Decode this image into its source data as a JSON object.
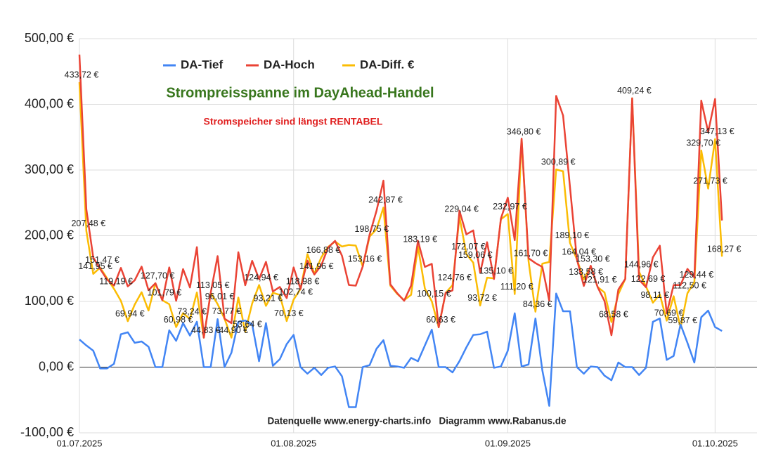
{
  "chart_data": {
    "type": "line",
    "title": "Strompreisspanne im DayAhead-Handel",
    "subtitle": "Stromspeicher sind längst RENTABEL",
    "annotations": [
      "Datenquelle www.energy-charts.info   Diagramm www.Rabanus.de"
    ],
    "legend": "top",
    "grid": true,
    "ylim": [
      -100,
      500
    ],
    "yticks": [
      {
        "value": -100,
        "label": "-100,00 €"
      },
      {
        "value": 0,
        "label": "0,00 €"
      },
      {
        "value": 100,
        "label": "100,00 €"
      },
      {
        "value": 200,
        "label": "200,00 €"
      },
      {
        "value": 300,
        "label": "300,00 €"
      },
      {
        "value": 400,
        "label": "400,00 €"
      },
      {
        "value": 500,
        "label": "500,00 €"
      }
    ],
    "categories": [
      "01.07.2025",
      null,
      null,
      null,
      null,
      null,
      null,
      null,
      null,
      null,
      null,
      null,
      null,
      null,
      null,
      null,
      null,
      null,
      null,
      null,
      null,
      null,
      null,
      null,
      null,
      null,
      null,
      null,
      null,
      null,
      null,
      "01.08.2025",
      null,
      null,
      null,
      null,
      null,
      null,
      null,
      null,
      null,
      null,
      null,
      null,
      null,
      null,
      null,
      null,
      null,
      null,
      null,
      null,
      null,
      null,
      null,
      null,
      null,
      null,
      null,
      null,
      null,
      null,
      "01.09.2025",
      null,
      null,
      null,
      null,
      null,
      null,
      null,
      null,
      null,
      null,
      null,
      null,
      null,
      null,
      null,
      null,
      null,
      null,
      null,
      null,
      null,
      null,
      null,
      null,
      null,
      null,
      null,
      null,
      null,
      "01.10.2025",
      null
    ],
    "series": [
      {
        "name": "DA-Tief",
        "color": "#4285f4",
        "values": [
          42,
          33,
          25,
          -2,
          -2,
          5,
          50,
          53,
          37,
          39,
          31,
          0,
          0,
          56,
          40,
          67,
          48,
          69,
          0,
          0,
          73,
          0,
          22,
          69,
          71,
          65,
          9,
          67,
          2,
          12,
          35,
          49,
          0,
          -10,
          -1,
          -12,
          -1,
          1,
          -14,
          -61,
          -61,
          0,
          3,
          28,
          41,
          2,
          1,
          -1,
          14,
          9,
          33,
          57,
          0,
          0,
          -8,
          9,
          30,
          49,
          50,
          54,
          -1,
          1,
          25,
          82,
          1,
          4,
          74,
          -5,
          -59,
          112,
          85,
          85,
          0,
          -10,
          1,
          0,
          -13,
          -20,
          7,
          0,
          0,
          -12,
          -1,
          69,
          74,
          11,
          17,
          65,
          37,
          7,
          76,
          86,
          61,
          55
        ]
      },
      {
        "name": "DA-Hoch",
        "color": "#ea4335",
        "values": [
          475.72,
          240.48,
          166.95,
          149.47,
          133.2,
          124.19,
          151.0,
          122.94,
          132.16,
          153.0,
          117.08,
          127.7,
          101.79,
          151.78,
          100.98,
          149.22,
          121.24,
          182.6,
          44.83,
          113.05,
          169.01,
          73.77,
          66.9,
          174.88,
          124.64,
          161.8,
          133.94,
          160.21,
          115.2,
          122.0,
          105.13,
          151.74,
          118.98,
          162.1,
          140.96,
          154.88,
          182.03,
          192.19,
          169.53,
          125.0,
          124.0,
          153.16,
          201.75,
          238.0,
          283.87,
          126.03,
          112.4,
          101.0,
          124.0,
          192.19,
          152.6,
          157.15,
          60.63,
          112.98,
          116.76,
          238.04,
          202.07,
          208.06,
          143.72,
          190.2,
          134.1,
          226.02,
          257.97,
          193.2,
          347.8,
          165.7,
          158.36,
          152.5,
          101.0,
          412.89,
          383.0,
          274.1,
          164.04,
          123.58,
          154.3,
          121.91,
          100.58,
          48.58,
          118.13,
          134.23,
          409.24,
          132.96,
          121.69,
          167.11,
          184.8,
          81.69,
          125.0,
          124.87,
          149.5,
          136.44,
          405.7,
          357.73,
          408.13,
          223.27
        ]
      },
      {
        "name": "DA-Diff. €",
        "color": "#fbbc04",
        "values": [
          433.72,
          207.48,
          141.95,
          151.47,
          135.2,
          119.19,
          101.0,
          69.94,
          95.16,
          114.0,
          86.08,
          127.7,
          101.79,
          95.78,
          60.98,
          82.22,
          73.24,
          113.6,
          44.83,
          113.05,
          96.01,
          73.77,
          44.9,
          105.88,
          53.64,
          96.8,
          124.94,
          93.21,
          113.2,
          110.0,
          70.13,
          102.74,
          118.98,
          172.1,
          141.96,
          166.88,
          183.03,
          191.19,
          183.53,
          186.0,
          185.0,
          153.16,
          198.75,
          210.0,
          242.87,
          124.03,
          111.4,
          102.0,
          110.0,
          183.19,
          119.6,
          100.15,
          60.63,
          112.98,
          124.76,
          229.04,
          172.07,
          159.06,
          93.72,
          136.2,
          135.1,
          225.02,
          232.97,
          111.2,
          346.8,
          161.7,
          84.36,
          157.5,
          160.0,
          300.89,
          298.0,
          189.1,
          164.04,
          133.58,
          153.3,
          121.91,
          113.58,
          68.58,
          111.13,
          134.23,
          409.24,
          144.96,
          122.69,
          98.11,
          110.8,
          70.69,
          108.0,
          59.87,
          112.5,
          129.44,
          329.7,
          271.73,
          347.13,
          168.27
        ],
        "value_labels": [
          "433,72 €",
          "207,48 €",
          "141,95 €",
          "151,47 €",
          null,
          "119,19 €",
          null,
          "69,94 €",
          null,
          null,
          null,
          "127,70 €",
          "101,79 €",
          null,
          "60,98 €",
          null,
          "73,24 €",
          null,
          "44,83 €",
          "113,05 €",
          "96,01 €",
          "73,77 €",
          "44,90 €",
          null,
          "53,64 €",
          null,
          "124,94 €",
          "93,21 €",
          null,
          null,
          "70,13 €",
          "102,74 €",
          "118,98 €",
          null,
          "141,96 €",
          "166,88 €",
          null,
          null,
          null,
          null,
          null,
          "153,16 €",
          "198,75 €",
          null,
          "242,87 €",
          null,
          null,
          null,
          null,
          "183,19 €",
          null,
          "100,15 €",
          "60,63 €",
          null,
          "124,76 €",
          "229,04 €",
          "172,07 €",
          "159,06 €",
          "93,72 €",
          null,
          "135,10 €",
          null,
          "232,97 €",
          "111,20 €",
          "346,80 €",
          "161,70 €",
          "84,36 €",
          null,
          null,
          "300,89 €",
          null,
          "189,10 €",
          "164,04 €",
          "133,58 €",
          "153,30 €",
          "121,91 €",
          null,
          "68,58 €",
          null,
          null,
          "409,24 €",
          "144,96 €",
          "122,69 €",
          "98,11 €",
          null,
          "70,69 €",
          null,
          "59,87 €",
          "112,50 €",
          "129,44 €",
          "329,70 €",
          "271,73 €",
          "347,13 €",
          "168,27 €"
        ]
      }
    ]
  }
}
